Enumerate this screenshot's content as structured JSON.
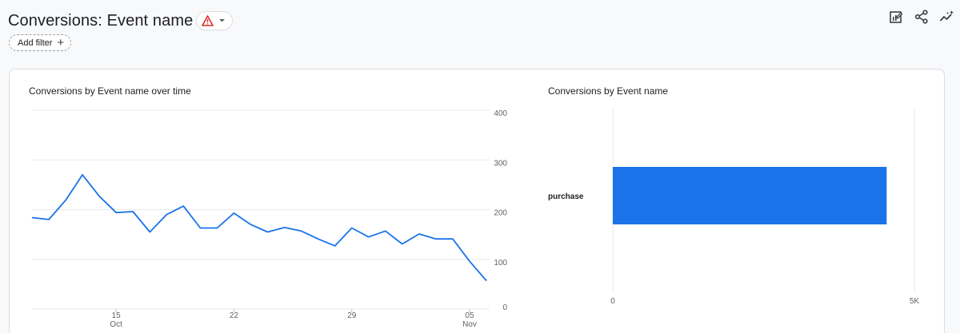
{
  "header": {
    "title": "Conversions: Event name"
  },
  "filter": {
    "add_label": "Add filter",
    "plus": "+"
  },
  "colors": {
    "accent": "#1a73e8",
    "warning": "#d93025",
    "grid": "#e8eaed"
  },
  "toolbar": {
    "icons": [
      "customize-report-icon",
      "share-icon",
      "insights-icon"
    ]
  },
  "chart_data": [
    {
      "type": "line",
      "title": "Conversions by Event name over time",
      "x": [
        "Oct 10",
        "Oct 11",
        "Oct 12",
        "Oct 13",
        "Oct 14",
        "Oct 15",
        "Oct 16",
        "Oct 17",
        "Oct 18",
        "Oct 19",
        "Oct 20",
        "Oct 21",
        "Oct 22",
        "Oct 23",
        "Oct 24",
        "Oct 25",
        "Oct 26",
        "Oct 27",
        "Oct 28",
        "Oct 29",
        "Oct 30",
        "Oct 31",
        "Nov 1",
        "Nov 2",
        "Nov 3",
        "Nov 4",
        "Nov 5",
        "Nov 6"
      ],
      "series": [
        {
          "values": [
            184,
            180,
            219,
            270,
            227,
            194,
            196,
            155,
            190,
            207,
            163,
            163,
            193,
            170,
            155,
            164,
            157,
            141,
            127,
            163,
            145,
            157,
            131,
            151,
            141,
            141,
            96,
            57
          ]
        }
      ],
      "x_ticks": [
        {
          "index": 5,
          "label": "15",
          "sub": "Oct"
        },
        {
          "index": 12,
          "label": "22",
          "sub": ""
        },
        {
          "index": 19,
          "label": "29",
          "sub": ""
        },
        {
          "index": 26,
          "label": "05",
          "sub": "Nov"
        }
      ],
      "y_ticks": [
        0,
        100,
        200,
        300,
        400
      ],
      "ylim": [
        0,
        400
      ],
      "y_axis_position": "right",
      "grid": true
    },
    {
      "type": "bar",
      "orientation": "horizontal",
      "title": "Conversions by Event name",
      "categories": [
        "purchase"
      ],
      "values": [
        4540
      ],
      "x_ticks": [
        "0",
        "5K"
      ],
      "xlim": [
        0,
        5000
      ],
      "grid": true
    }
  ]
}
